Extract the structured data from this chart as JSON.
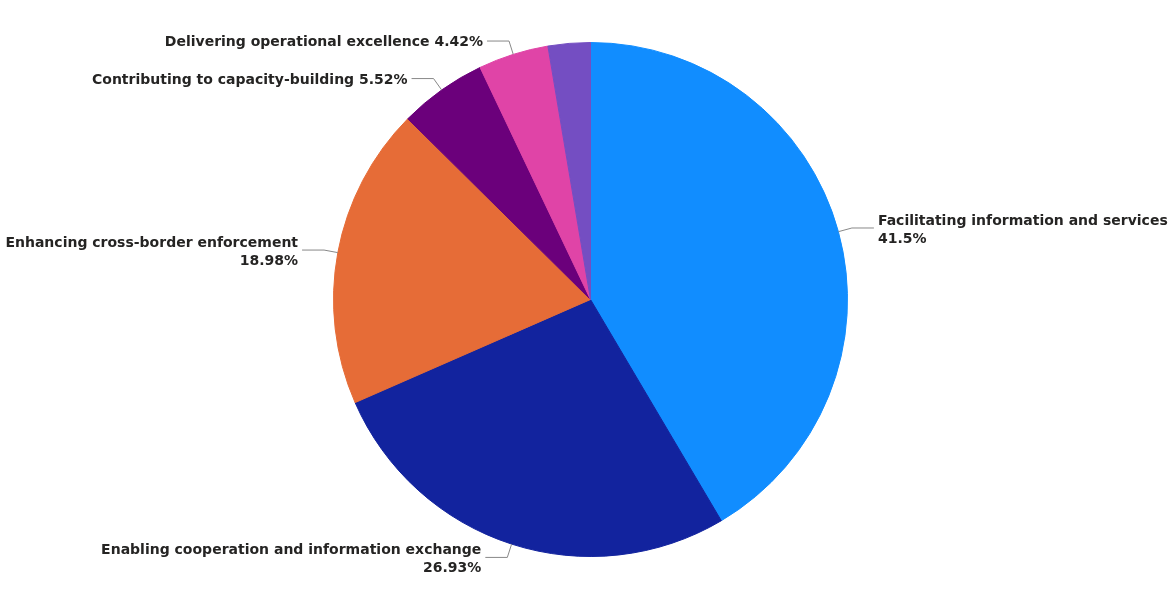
{
  "chart_data": {
    "type": "pie",
    "categories": [
      "Facilitating information and services",
      "Enabling cooperation and information exchange",
      "Enhancing cross-border enforcement",
      "Contributing to capacity-building",
      "Delivering operational excellence",
      null
    ],
    "values": [
      41.5,
      26.93,
      18.98,
      5.52,
      4.42,
      2.65
    ],
    "value_labels": [
      "41.5%",
      "26.93%",
      "18.98%",
      "5.52%",
      "4.42%",
      null
    ],
    "colors": [
      "#118dff",
      "#12239e",
      "#e66c37",
      "#6b007b",
      "#e044a7",
      "#744ec2"
    ]
  }
}
